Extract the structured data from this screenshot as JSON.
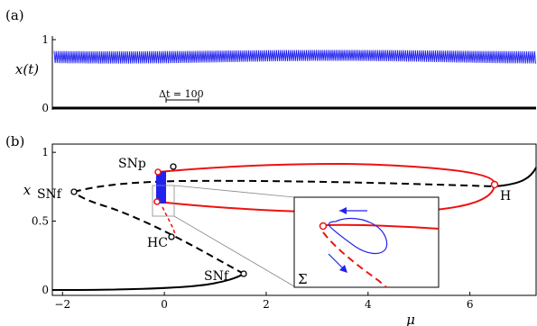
{
  "chart_data": [
    {
      "panel": "(a)",
      "type": "line",
      "ylabel": "x(t)",
      "ylim": [
        0,
        1
      ],
      "yticks": [
        "0",
        "1"
      ],
      "scalebar_label": "Δt = 100",
      "signal": {
        "description_level_min": 0.65,
        "description_level_max": 0.85,
        "color": "#1a1aee"
      }
    },
    {
      "panel": "(b)",
      "type": "line",
      "xlabel": "μ",
      "ylabel": "x",
      "xlim": [
        -2.2,
        7.3
      ],
      "ylim": [
        -0.04,
        1.06
      ],
      "xticks": [
        "−2",
        "0",
        "2",
        "4",
        "6"
      ],
      "yticks": [
        "0",
        "0.5",
        "1"
      ],
      "annotations": [
        {
          "label": "SNp",
          "x": 0.1,
          "y": 0.89
        },
        {
          "label": "SNf",
          "x": -1.25,
          "y": 0.71
        },
        {
          "label": "HC",
          "x": 0.1,
          "y": 0.39
        },
        {
          "label": "SNf",
          "x": 1.5,
          "y": 0.11
        },
        {
          "label": "H",
          "x": 6.45,
          "y": 0.78
        }
      ],
      "inset_label": "Σ",
      "colors": {
        "stable": "#000000",
        "unstable": "#000000",
        "periodic": "#ee1111",
        "trajectory": "#2222ee"
      }
    }
  ]
}
